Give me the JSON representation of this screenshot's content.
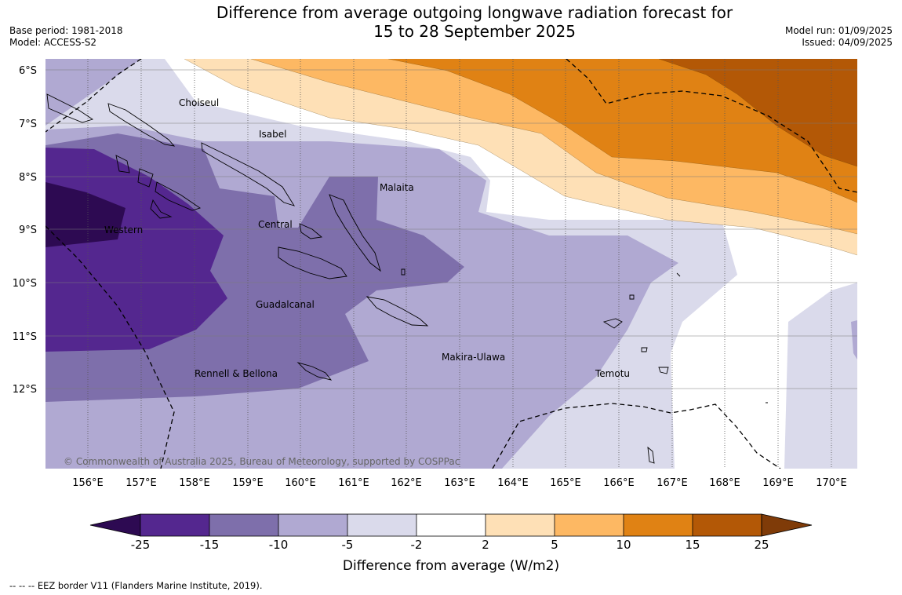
{
  "title": {
    "line1": "Difference from average outgoing longwave radiation forecast for",
    "line2": "15 to 28 September 2025"
  },
  "meta": {
    "base_period": "Base period: 1981-2018",
    "model": "Model: ACCESS-S2",
    "model_run": "Model run: 01/09/2025",
    "issued": "Issued: 04/09/2025"
  },
  "map": {
    "lat_labels": [
      "6°S",
      "7°S",
      "8°S",
      "9°S",
      "10°S",
      "11°S",
      "12°S"
    ],
    "lon_labels": [
      "156°E",
      "157°E",
      "158°E",
      "159°E",
      "160°E",
      "161°E",
      "162°E",
      "163°E",
      "164°E",
      "165°E",
      "166°E",
      "167°E",
      "168°E",
      "169°E",
      "170°E"
    ],
    "regions": [
      "Choiseul",
      "Isabel",
      "Malaita",
      "Western",
      "Central",
      "Guadalcanal",
      "Makira-Ulawa",
      "Temotu",
      "Rennell & Bellona"
    ],
    "copyright": "© Commonwealth of Australia 2025, Bureau of Meteorology, supported by COSPPac"
  },
  "colorbar": {
    "ticks": [
      "-25",
      "-15",
      "-10",
      "-5",
      "-2",
      "2",
      "5",
      "10",
      "15",
      "25"
    ],
    "label": "Difference from average (W/m2)",
    "colors": {
      "below_-25": "#2d0a52",
      "-25_-15": "#54278f",
      "-15_-10": "#7e6fab",
      "-10_-5": "#b0a9d2",
      "-5_-2": "#dadaeb",
      "-2_2": "#ffffff",
      "2_5": "#fee0b6",
      "5_10": "#fdb863",
      "10_15": "#e08214",
      "15_25": "#b35806",
      "above_25": "#7f3b08"
    }
  },
  "legend_note": "--  --  -- EEZ border V11 (Flanders Marine Institute, 2019)."
}
